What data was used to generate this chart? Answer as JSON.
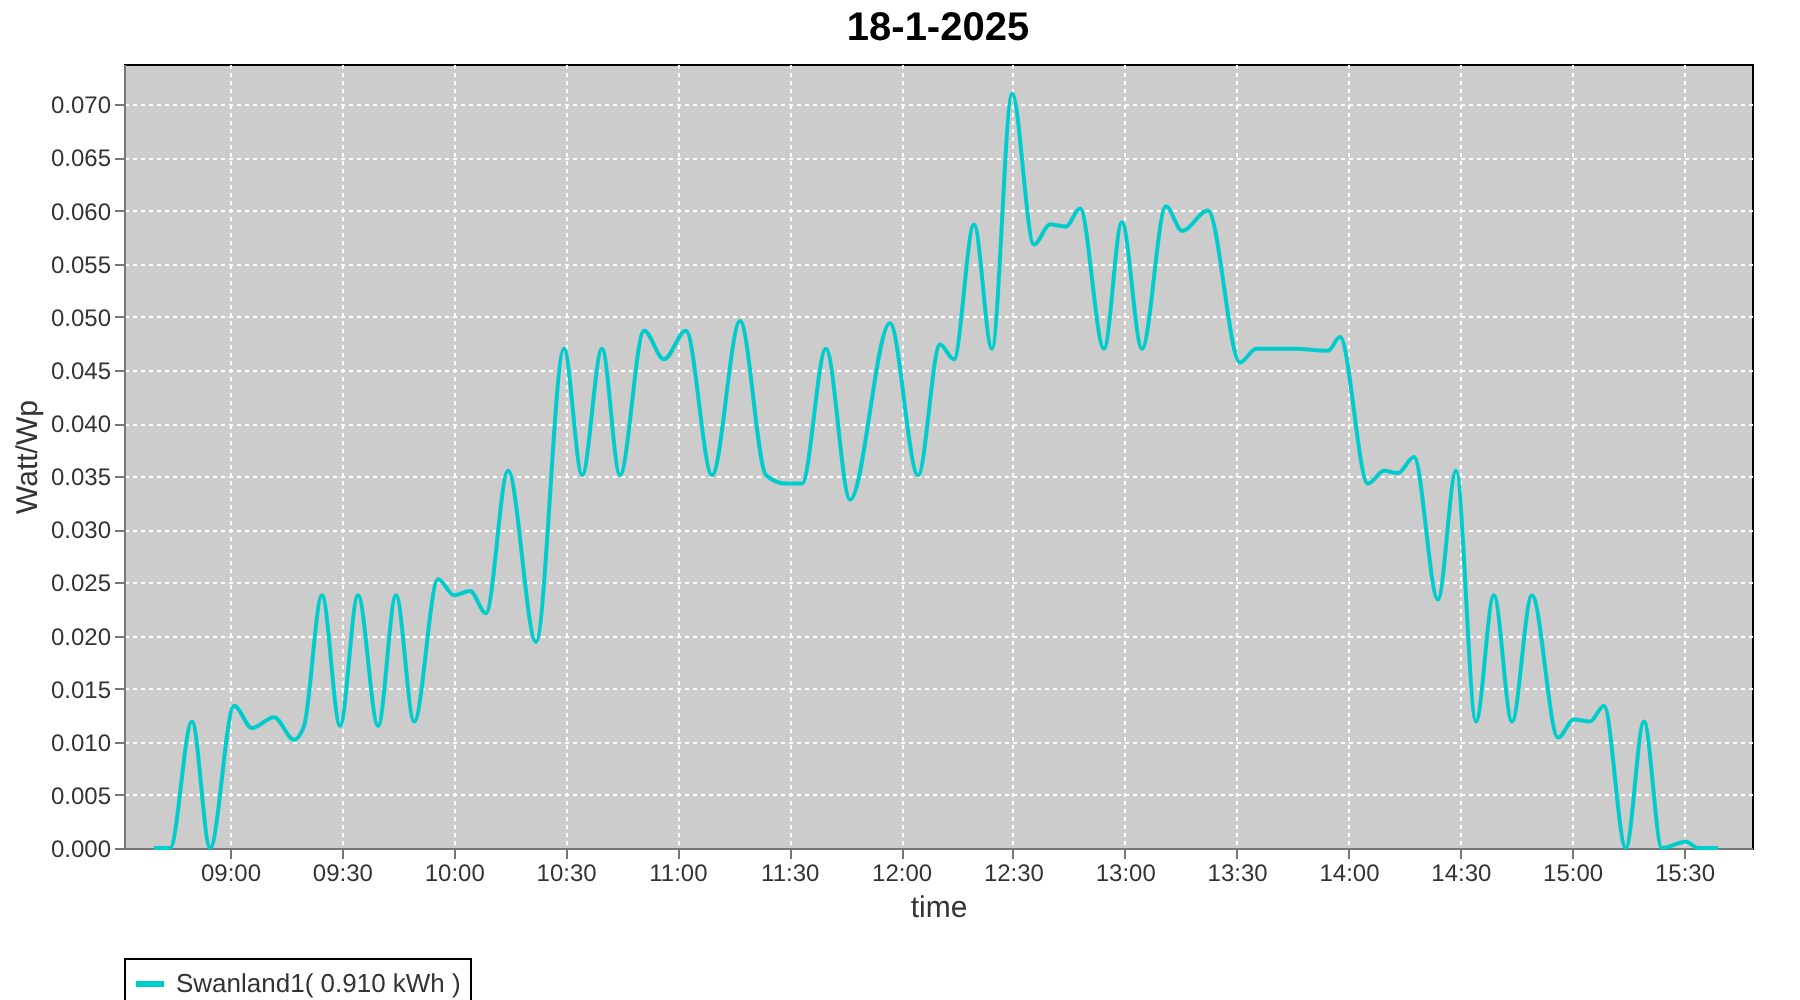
{
  "chart_data": {
    "type": "line",
    "title": "18-1-2025",
    "xlabel": "time",
    "ylabel": "Watt/Wp",
    "x": [
      8.66,
      8.732,
      8.83,
      8.911,
      9.018,
      9.098,
      9.197,
      9.286,
      9.331,
      9.411,
      9.492,
      9.572,
      9.662,
      9.742,
      9.823,
      9.93,
      10.001,
      10.073,
      10.144,
      10.243,
      10.368,
      10.493,
      10.574,
      10.663,
      10.743,
      10.851,
      10.94,
      11.038,
      11.155,
      11.28,
      11.396,
      11.485,
      11.557,
      11.664,
      11.772,
      11.95,
      12.076,
      12.174,
      12.236,
      12.326,
      12.406,
      12.496,
      12.594,
      12.666,
      12.737,
      12.8,
      12.907,
      12.987,
      13.077,
      13.184,
      13.256,
      13.372,
      13.515,
      13.587,
      13.756,
      13.908,
      13.962,
      14.087,
      14.159,
      14.221,
      14.293,
      14.4,
      14.481,
      14.57,
      14.65,
      14.731,
      14.82,
      14.937,
      15.008,
      15.08,
      15.142,
      15.24,
      15.321,
      15.401,
      15.509,
      15.562,
      15.652
    ],
    "series": [
      {
        "name": "Swanland1( 0.910 kWh )",
        "color": "#00cccc",
        "values": [
          0,
          0,
          0.0119,
          0,
          0.0134,
          0.0113,
          0.0123,
          0.0102,
          0.0115,
          0.0238,
          0.0115,
          0.0238,
          0.0115,
          0.0238,
          0.0119,
          0.0253,
          0.0238,
          0.0242,
          0.0221,
          0.0355,
          0.0194,
          0.047,
          0.0351,
          0.047,
          0.0351,
          0.0487,
          0.046,
          0.0487,
          0.0351,
          0.0496,
          0.0351,
          0.0343,
          0.0343,
          0.047,
          0.0328,
          0.0494,
          0.0351,
          0.0474,
          0.046,
          0.0587,
          0.047,
          0.071,
          0.0568,
          0.0587,
          0.0585,
          0.0602,
          0.047,
          0.0589,
          0.047,
          0.0604,
          0.0581,
          0.06,
          0.0457,
          0.047,
          0.047,
          0.0468,
          0.0481,
          0.0343,
          0.0355,
          0.0353,
          0.0368,
          0.0234,
          0.0355,
          0.0119,
          0.0238,
          0.0119,
          0.0238,
          0.0104,
          0.0121,
          0.0119,
          0.0134,
          0,
          0.0119,
          0,
          0.0006,
          0,
          0
        ]
      }
    ],
    "xlim": [
      8.526,
      15.804
    ],
    "ylim": [
      0,
      0.0738
    ],
    "xticks": [
      {
        "value": 9,
        "label": "09:00"
      },
      {
        "value": 9.5,
        "label": "09:30"
      },
      {
        "value": 10,
        "label": "10:00"
      },
      {
        "value": 10.5,
        "label": "10:30"
      },
      {
        "value": 11,
        "label": "11:00"
      },
      {
        "value": 11.5,
        "label": "11:30"
      },
      {
        "value": 12,
        "label": "12:00"
      },
      {
        "value": 12.5,
        "label": "12:30"
      },
      {
        "value": 13,
        "label": "13:00"
      },
      {
        "value": 13.5,
        "label": "13:30"
      },
      {
        "value": 14,
        "label": "14:00"
      },
      {
        "value": 14.5,
        "label": "14:30"
      },
      {
        "value": 15,
        "label": "15:00"
      },
      {
        "value": 15.5,
        "label": "15:30"
      }
    ],
    "yticks": [
      {
        "value": 0,
        "label": "0.000"
      },
      {
        "value": 0.005,
        "label": "0.005"
      },
      {
        "value": 0.01,
        "label": "0.010"
      },
      {
        "value": 0.015,
        "label": "0.015"
      },
      {
        "value": 0.02,
        "label": "0.020"
      },
      {
        "value": 0.025,
        "label": "0.025"
      },
      {
        "value": 0.03,
        "label": "0.030"
      },
      {
        "value": 0.035,
        "label": "0.035"
      },
      {
        "value": 0.04,
        "label": "0.040"
      },
      {
        "value": 0.045,
        "label": "0.045"
      },
      {
        "value": 0.05,
        "label": "0.050"
      },
      {
        "value": 0.055,
        "label": "0.055"
      },
      {
        "value": 0.06,
        "label": "0.060"
      },
      {
        "value": 0.065,
        "label": "0.065"
      },
      {
        "value": 0.07,
        "label": "0.070"
      }
    ],
    "grid": true,
    "legend": "bottom",
    "marker": "none",
    "line_style": "solid"
  }
}
